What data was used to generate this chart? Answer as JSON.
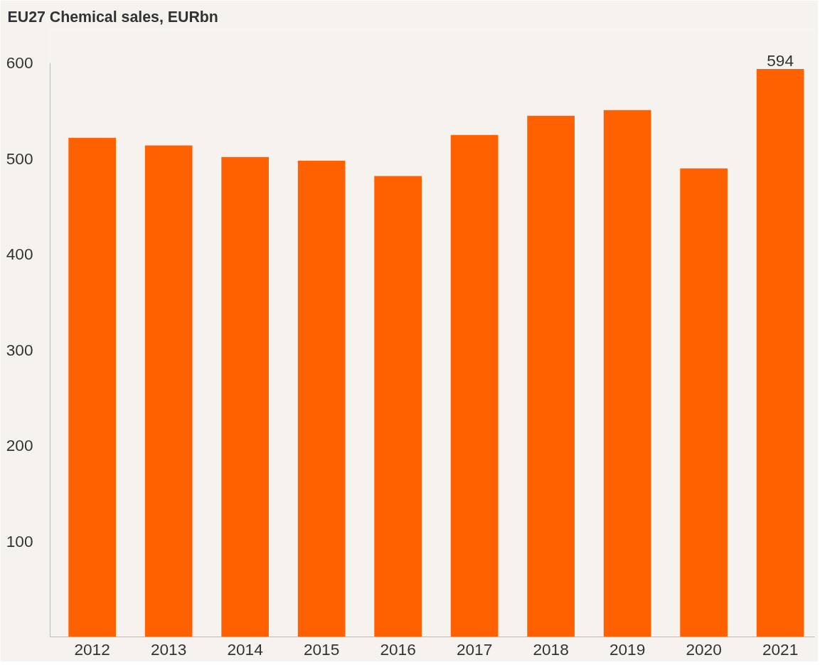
{
  "chart_data": {
    "type": "bar",
    "title": "EU27 Chemical sales, EURbn",
    "categories": [
      "2012",
      "2013",
      "2014",
      "2015",
      "2016",
      "2017",
      "2018",
      "2019",
      "2020",
      "2021"
    ],
    "values": [
      522,
      514,
      502,
      498,
      482,
      525,
      545,
      551,
      490,
      594
    ],
    "value_labels": [
      null,
      null,
      null,
      null,
      null,
      null,
      null,
      null,
      null,
      "594"
    ],
    "color": "#ff6000",
    "ylim": [
      0,
      600
    ],
    "yticks": [
      100,
      200,
      300,
      400,
      500,
      600
    ],
    "grid": false
  }
}
